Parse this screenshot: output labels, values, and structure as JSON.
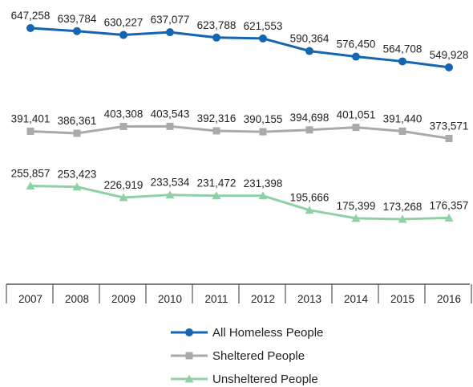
{
  "chart_data": {
    "type": "line",
    "categories": [
      "2007",
      "2008",
      "2009",
      "2010",
      "2011",
      "2012",
      "2013",
      "2014",
      "2015",
      "2016"
    ],
    "series": [
      {
        "name": "All Homeless People",
        "color": "#1565b0",
        "marker": "circle",
        "values": [
          647258,
          639784,
          630227,
          637077,
          623788,
          621553,
          590364,
          576450,
          564708,
          549928
        ],
        "labels": [
          "647,258",
          "639,784",
          "630,227",
          "637,077",
          "623,788",
          "621,553",
          "590,364",
          "576,450",
          "564,708",
          "549,928"
        ]
      },
      {
        "name": "Sheltered People",
        "color": "#a9aaac",
        "marker": "square",
        "values": [
          391401,
          386361,
          403308,
          403543,
          392316,
          390155,
          394698,
          401051,
          391440,
          373571
        ],
        "labels": [
          "391,401",
          "386,361",
          "403,308",
          "403,543",
          "392,316",
          "390,155",
          "394,698",
          "401,051",
          "391,440",
          "373,571"
        ]
      },
      {
        "name": "Unsheltered People",
        "color": "#8fd1a6",
        "marker": "triangle",
        "values": [
          255857,
          253423,
          226919,
          233534,
          231472,
          231398,
          195666,
          175399,
          173268,
          176357
        ],
        "labels": [
          "255,857",
          "253,423",
          "226,919",
          "233,534",
          "231,472",
          "231,398",
          "195,666",
          "175,399",
          "173,268",
          "176,357"
        ]
      }
    ],
    "grid": false,
    "legend_position": "bottom-center",
    "title": "",
    "xlabel": "",
    "ylabel": ""
  }
}
